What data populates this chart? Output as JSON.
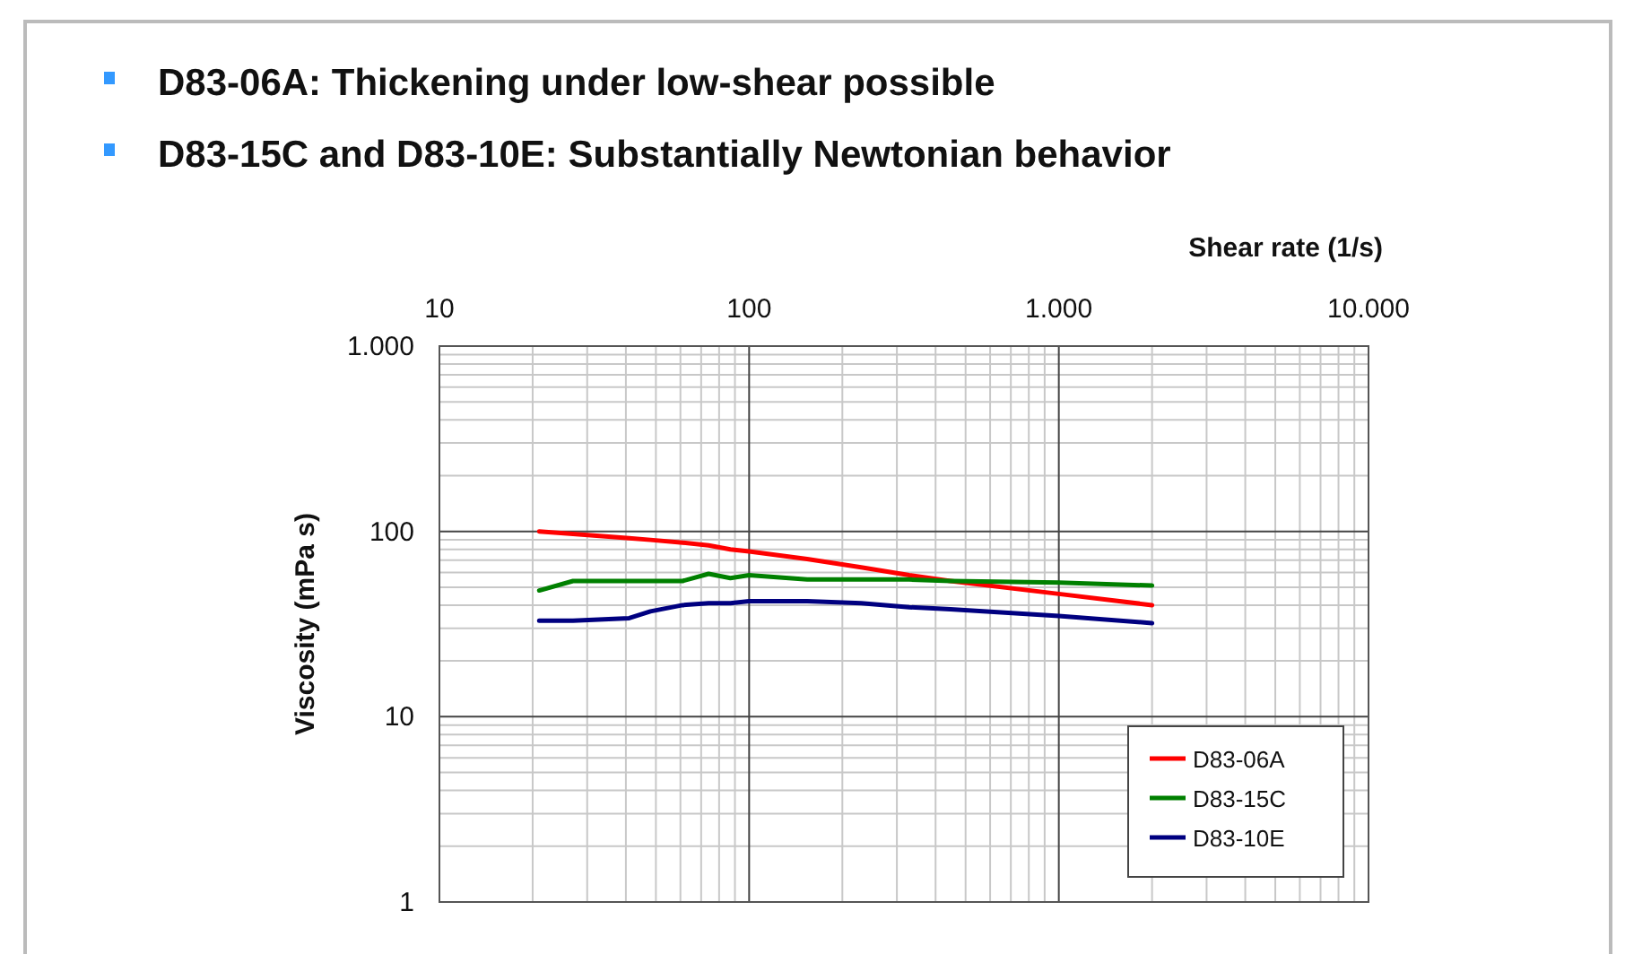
{
  "chart_data": {
    "type": "line",
    "title": "D83-06A: Thickening under low-shear possible",
    "subtitle": "D83-15C and D83-10E: Substantially Newtonian behavior",
    "xlabel": "Shear rate (1/s)",
    "ylabel": "Viscosity (mPa s)",
    "log": "xy",
    "grid": true,
    "legend": "bottom right",
    "marker": "none",
    "line_style": "solid",
    "xlim": [
      10,
      10000
    ],
    "xticks": [
      10,
      100,
      {
        "value": 1000,
        "label": "1.000"
      },
      {
        "value": 10000,
        "label": "10.000"
      }
    ],
    "ylim": [
      1,
      1000
    ],
    "yticks": [
      1,
      10,
      100,
      {
        "value": 1000,
        "label": "1.000"
      }
    ],
    "x": [
      21,
      27,
      41,
      48,
      61,
      74,
      87,
      100,
      154,
      230,
      329,
      447,
      1000,
      2000
    ],
    "series": [
      {
        "name": "D83-06A",
        "color": "#ff0000",
        "values": [
          100,
          97,
          92,
          90,
          87,
          84,
          80,
          78,
          71,
          64,
          58,
          54,
          46,
          40
        ]
      },
      {
        "name": "D83-15C",
        "color": "#008000",
        "values": [
          48,
          54,
          54,
          54,
          54,
          59,
          56,
          58,
          55,
          55,
          55,
          54,
          53,
          51
        ]
      },
      {
        "name": "D83-10E",
        "color": "#000080",
        "values": [
          33,
          33,
          34,
          37,
          40,
          41,
          41,
          42,
          42,
          41,
          39,
          38,
          35,
          32
        ]
      }
    ]
  }
}
